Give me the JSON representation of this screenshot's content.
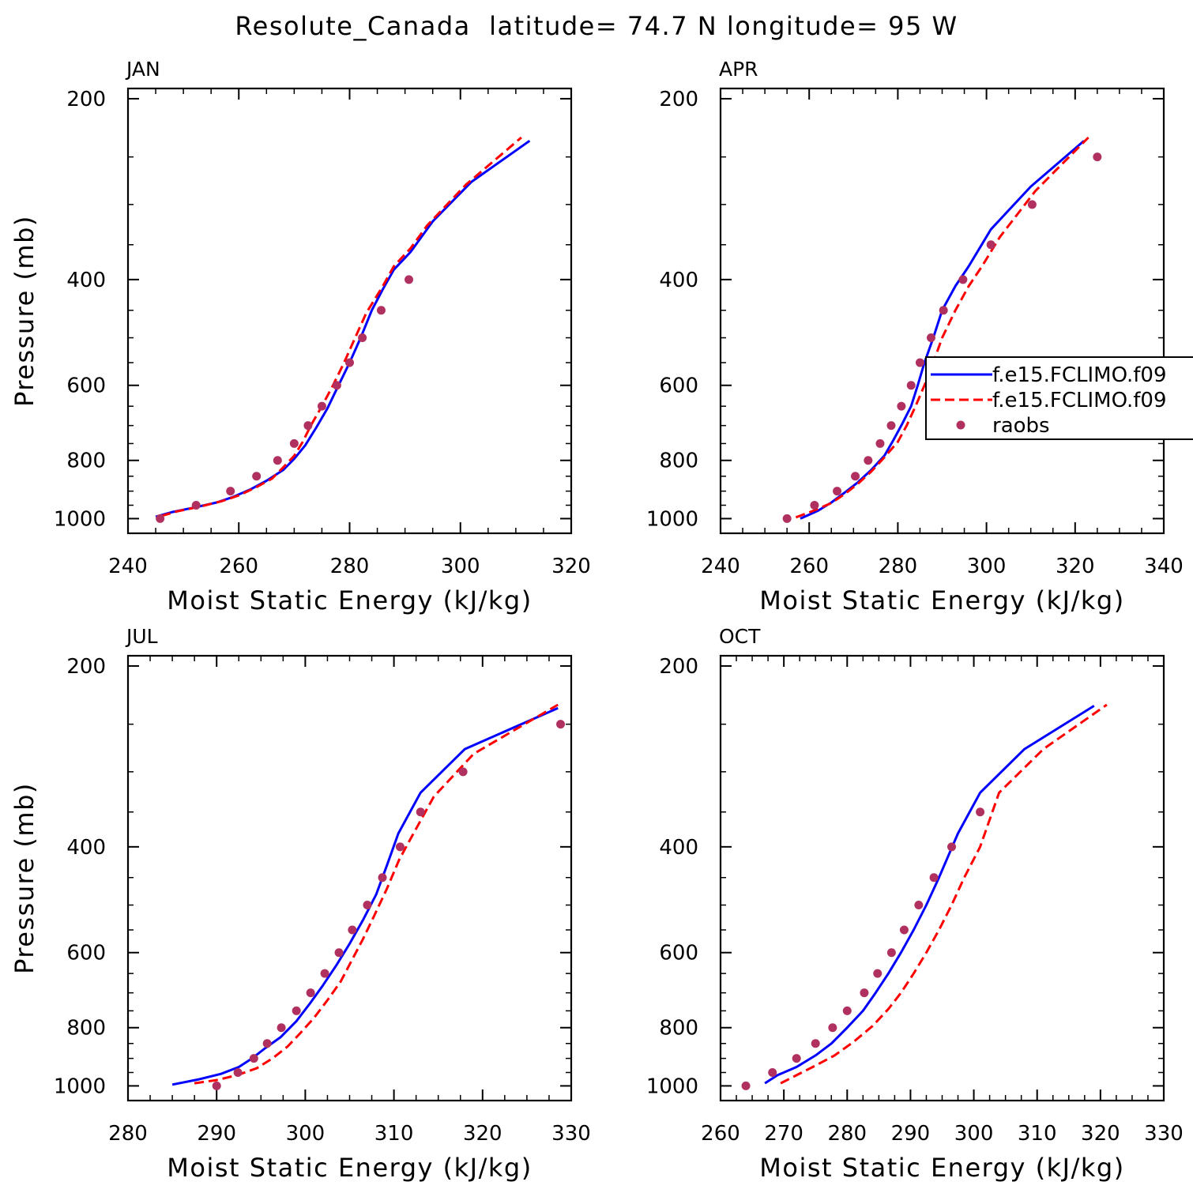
{
  "page_title": "Resolute_Canada  latitude= 74.7 N longitude= 95 W",
  "colors": {
    "model1": "#0000ff",
    "model2": "#ff0000",
    "raobs": "#b03060",
    "axis": "#000000"
  },
  "legend": {
    "placement": "right side of APR panel",
    "entries": [
      {
        "label": "f.e15.FCLIMO.f09",
        "style": "solid",
        "color": "#0000ff"
      },
      {
        "label": "f.e15.FCLIMO.f09",
        "style": "dashed",
        "color": "#ff0000"
      },
      {
        "label": "raobs",
        "style": "marker",
        "color": "#b03060"
      }
    ]
  },
  "chart_data": [
    {
      "type": "line",
      "title": "JAN",
      "xlabel": "Moist Static Energy (kJ/kg)",
      "ylabel": "Pressure (mb)",
      "xlim": [
        240,
        320
      ],
      "ylim": [
        1000,
        200
      ],
      "y_scale": "log",
      "xticks": [
        240,
        260,
        280,
        300,
        320
      ],
      "yticks": [
        200,
        400,
        600,
        800,
        1000
      ],
      "series": [
        {
          "name": "f.e15.FCLIMO.f09",
          "style": "solid",
          "points": [
            [
              245,
              993
            ],
            [
              248,
              975
            ],
            [
              252,
              958
            ],
            [
              256,
              940
            ],
            [
              259,
              920
            ],
            [
              262,
              895
            ],
            [
              265,
              865
            ],
            [
              268,
              830
            ],
            [
              270,
              795
            ],
            [
              272,
              755
            ],
            [
              274,
              705
            ],
            [
              276,
              655
            ],
            [
              278,
              600
            ],
            [
              280,
              550
            ],
            [
              282,
              500
            ],
            [
              284,
              450
            ],
            [
              286,
              415
            ],
            [
              288,
              385
            ],
            [
              291,
              360
            ],
            [
              295,
              320
            ],
            [
              302,
              275
            ],
            [
              312.5,
              235
            ]
          ]
        },
        {
          "name": "f.e15.FCLIMO.f09",
          "style": "dashed",
          "points": [
            [
              246,
              990
            ],
            [
              249,
              972
            ],
            [
              253,
              955
            ],
            [
              257,
              935
            ],
            [
              260,
              915
            ],
            [
              263,
              888
            ],
            [
              266,
              858
            ],
            [
              268,
              822
            ],
            [
              270,
              786
            ],
            [
              271.5,
              746
            ],
            [
              273,
              700
            ],
            [
              275,
              650
            ],
            [
              277,
              600
            ],
            [
              279,
              550
            ],
            [
              281,
              500
            ],
            [
              283,
              455
            ],
            [
              286,
              410
            ],
            [
              288,
              380
            ],
            [
              291,
              355
            ],
            [
              294,
              325
            ],
            [
              301,
              278
            ],
            [
              311,
              232
            ]
          ]
        },
        {
          "name": "raobs",
          "style": "marker",
          "points": [
            [
              245.8,
              1000
            ],
            [
              252.3,
              950
            ],
            [
              258.5,
              900
            ],
            [
              263.2,
              850
            ],
            [
              267,
              800
            ],
            [
              270,
              750
            ],
            [
              272.5,
              700
            ],
            [
              275,
              650
            ],
            [
              277.7,
              600
            ],
            [
              280,
              550
            ],
            [
              282.3,
              500
            ],
            [
              285.7,
              450
            ],
            [
              290.7,
              400
            ]
          ]
        }
      ]
    },
    {
      "type": "line",
      "title": "APR",
      "xlabel": "Moist Static Energy (kJ/kg)",
      "ylabel": "",
      "xlim": [
        240,
        340
      ],
      "ylim": [
        1000,
        200
      ],
      "y_scale": "log",
      "xticks": [
        240,
        260,
        280,
        300,
        320,
        340
      ],
      "yticks": [
        200,
        400,
        600,
        800,
        1000
      ],
      "series": [
        {
          "name": "f.e15.FCLIMO.f09",
          "style": "solid",
          "points": [
            [
              258,
              1000
            ],
            [
              262,
              970
            ],
            [
              265,
              940
            ],
            [
              268,
              905
            ],
            [
              271,
              870
            ],
            [
              274,
              830
            ],
            [
              277,
              785
            ],
            [
              279,
              740
            ],
            [
              281,
              695
            ],
            [
              283,
              650
            ],
            [
              284.5,
              600
            ],
            [
              286,
              550
            ],
            [
              288,
              500
            ],
            [
              290,
              450
            ],
            [
              293,
              410
            ],
            [
              296,
              380
            ],
            [
              301,
              330
            ],
            [
              310,
              280
            ],
            [
              322,
              235
            ]
          ]
        },
        {
          "name": "f.e15.FCLIMO.f09",
          "style": "dashed",
          "points": [
            [
              257,
              995
            ],
            [
              261,
              970
            ],
            [
              265,
              942
            ],
            [
              268,
              910
            ],
            [
              271,
              875
            ],
            [
              274,
              835
            ],
            [
              277,
              790
            ],
            [
              280,
              745
            ],
            [
              282,
              700
            ],
            [
              284,
              650
            ],
            [
              286,
              600
            ],
            [
              288,
              550
            ],
            [
              290,
              500
            ],
            [
              293,
              450
            ],
            [
              296,
              410
            ],
            [
              299,
              380
            ],
            [
              303,
              340
            ],
            [
              311,
              285
            ],
            [
              323,
              232
            ]
          ]
        },
        {
          "name": "raobs",
          "style": "marker",
          "points": [
            [
              255,
              1000
            ],
            [
              261.2,
              950
            ],
            [
              266.3,
              900
            ],
            [
              270.4,
              850
            ],
            [
              273.3,
              800
            ],
            [
              276,
              750
            ],
            [
              278.5,
              700
            ],
            [
              280.8,
              650
            ],
            [
              283,
              600
            ],
            [
              285,
              550
            ],
            [
              287.5,
              500
            ],
            [
              290.3,
              450
            ],
            [
              294.7,
              400
            ],
            [
              301,
              350
            ],
            [
              310.3,
              300
            ],
            [
              325,
              250
            ]
          ]
        }
      ]
    },
    {
      "type": "line",
      "title": "JUL",
      "xlabel": "Moist Static Energy (kJ/kg)",
      "ylabel": "Pressure (mb)",
      "xlim": [
        280,
        330
      ],
      "ylim": [
        1000,
        200
      ],
      "y_scale": "log",
      "xticks": [
        280,
        290,
        300,
        310,
        320,
        330
      ],
      "yticks": [
        200,
        400,
        600,
        800,
        1000
      ],
      "series": [
        {
          "name": "f.e15.FCLIMO.f09",
          "style": "solid",
          "points": [
            [
              285,
              995
            ],
            [
              288,
              975
            ],
            [
              290.5,
              955
            ],
            [
              292.5,
              930
            ],
            [
              294,
              900
            ],
            [
              295.5,
              865
            ],
            [
              297.2,
              830
            ],
            [
              299,
              780
            ],
            [
              300.5,
              730
            ],
            [
              302,
              680
            ],
            [
              303.5,
              630
            ],
            [
              305,
              580
            ],
            [
              306.5,
              530
            ],
            [
              308,
              480
            ],
            [
              309.2,
              430
            ],
            [
              310.5,
              380
            ],
            [
              313,
              325
            ],
            [
              318,
              275
            ],
            [
              328.5,
              235
            ]
          ]
        },
        {
          "name": "f.e15.FCLIMO.f09",
          "style": "dashed",
          "points": [
            [
              287.5,
              990
            ],
            [
              290,
              978
            ],
            [
              292.3,
              960
            ],
            [
              294.5,
              935
            ],
            [
              296.3,
              900
            ],
            [
              298,
              860
            ],
            [
              299.5,
              815
            ],
            [
              301,
              770
            ],
            [
              302.5,
              720
            ],
            [
              304,
              670
            ],
            [
              305.2,
              620
            ],
            [
              306.5,
              570
            ],
            [
              307.8,
              520
            ],
            [
              309.2,
              470
            ],
            [
              310.6,
              420
            ],
            [
              312,
              385
            ],
            [
              314.5,
              330
            ],
            [
              319,
              280
            ],
            [
              328.5,
              232
            ]
          ]
        },
        {
          "name": "raobs",
          "style": "marker",
          "points": [
            [
              290,
              1000
            ],
            [
              292.4,
              950
            ],
            [
              294.2,
              900
            ],
            [
              295.7,
              850
            ],
            [
              297.3,
              800
            ],
            [
              299,
              750
            ],
            [
              300.6,
              700
            ],
            [
              302.2,
              650
            ],
            [
              303.8,
              600
            ],
            [
              305.3,
              550
            ],
            [
              307,
              500
            ],
            [
              308.7,
              450
            ],
            [
              310.7,
              400
            ],
            [
              313,
              350
            ],
            [
              317.8,
              300
            ],
            [
              328.8,
              250
            ]
          ]
        }
      ]
    },
    {
      "type": "line",
      "title": "OCT",
      "xlabel": "Moist Static Energy (kJ/kg)",
      "ylabel": "",
      "xlim": [
        260,
        330
      ],
      "ylim": [
        1000,
        200
      ],
      "y_scale": "log",
      "xticks": [
        260,
        270,
        280,
        290,
        300,
        310,
        320,
        330
      ],
      "yticks": [
        200,
        400,
        600,
        800,
        1000
      ],
      "series": [
        {
          "name": "f.e15.FCLIMO.f09",
          "style": "solid",
          "points": [
            [
              267,
              990
            ],
            [
              269,
              960
            ],
            [
              272,
              930
            ],
            [
              275,
              890
            ],
            [
              277.5,
              850
            ],
            [
              280,
              800
            ],
            [
              282.5,
              750
            ],
            [
              284.5,
              700
            ],
            [
              286.5,
              650
            ],
            [
              288.5,
              600
            ],
            [
              290.5,
              550
            ],
            [
              292.5,
              500
            ],
            [
              294.5,
              450
            ],
            [
              297.5,
              380
            ],
            [
              301,
              325
            ],
            [
              308,
              275
            ],
            [
              319,
              233
            ]
          ]
        },
        {
          "name": "f.e15.FCLIMO.f09",
          "style": "dashed",
          "points": [
            [
              269.5,
              990
            ],
            [
              272,
              960
            ],
            [
              275,
              925
            ],
            [
              278,
              890
            ],
            [
              281,
              845
            ],
            [
              284,
              795
            ],
            [
              286.5,
              745
            ],
            [
              288.5,
              700
            ],
            [
              290.5,
              650
            ],
            [
              292.5,
              600
            ],
            [
              294.5,
              550
            ],
            [
              296.5,
              500
            ],
            [
              298.5,
              450
            ],
            [
              301,
              400
            ],
            [
              304,
              325
            ],
            [
              311,
              275
            ],
            [
              321,
              232
            ]
          ]
        },
        {
          "name": "raobs",
          "style": "marker",
          "points": [
            [
              264,
              1000
            ],
            [
              268.2,
              950
            ],
            [
              272,
              900
            ],
            [
              275,
              850
            ],
            [
              277.7,
              800
            ],
            [
              280,
              750
            ],
            [
              282.7,
              700
            ],
            [
              284.8,
              650
            ],
            [
              287,
              600
            ],
            [
              289,
              550
            ],
            [
              291.3,
              500
            ],
            [
              293.7,
              450
            ],
            [
              296.5,
              400
            ],
            [
              301,
              350
            ]
          ]
        }
      ]
    }
  ]
}
